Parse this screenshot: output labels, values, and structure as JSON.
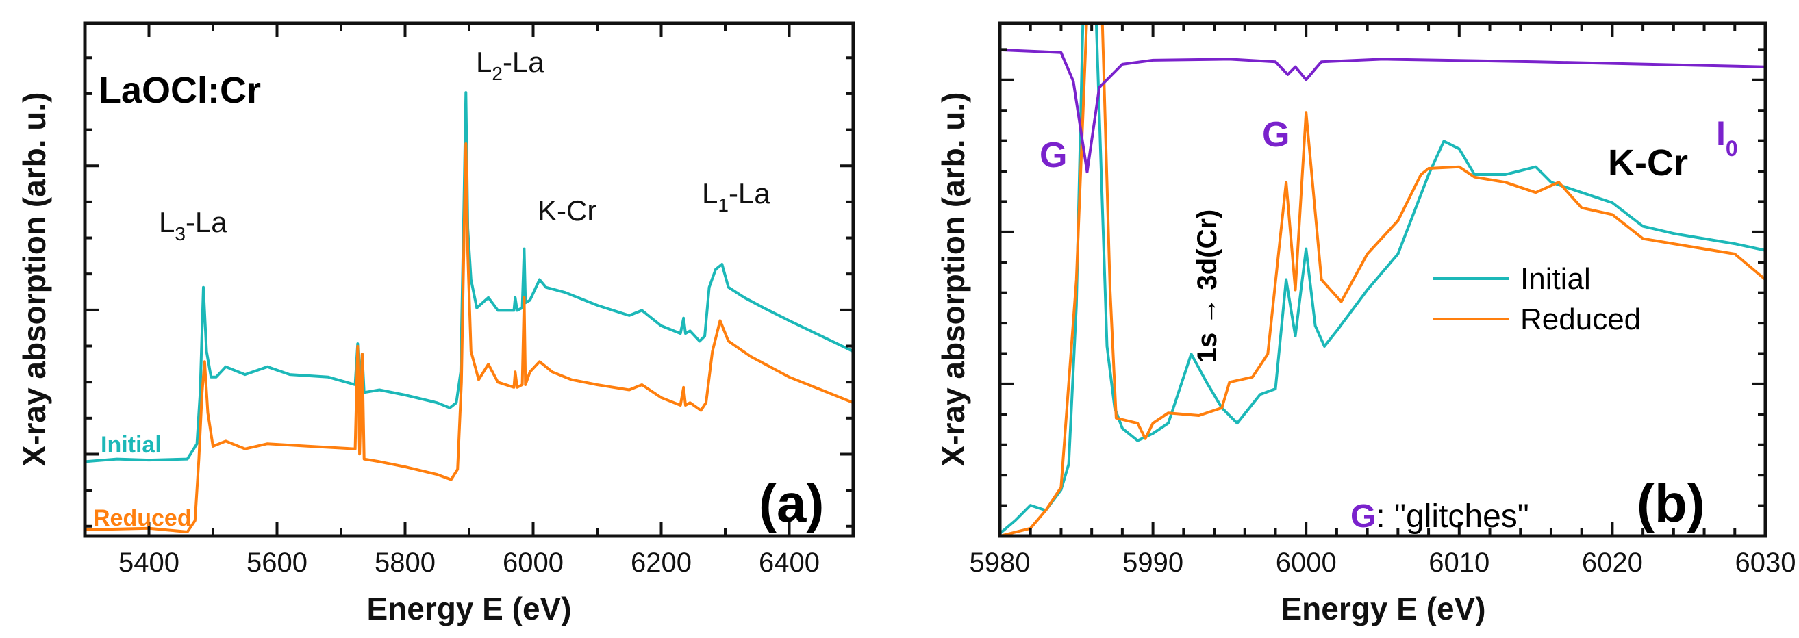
{
  "colors": {
    "initial": "#1cb8b8",
    "reduced": "#ff7f0e",
    "i0": "#7a22cc",
    "axis": "#111111"
  },
  "chart_data": [
    {
      "type": "line",
      "panel_label": "(a)",
      "title": "LaOCl:Cr",
      "xlabel": "Energy E (eV)",
      "ylabel": "X-ray  absorption (arb. u.)",
      "xlim": [
        5300,
        6500
      ],
      "ylim": [
        0,
        10
      ],
      "xticks": [
        5400,
        5600,
        5800,
        6000,
        6200,
        6400
      ],
      "xtick_labels": [
        "5400",
        "5600",
        "5800",
        "6000",
        "6200",
        "6400"
      ],
      "annotations": {
        "l3": {
          "main": "L",
          "sub": "3",
          "rest": "-La"
        },
        "l2": {
          "main": "L",
          "sub": "2",
          "rest": "-La"
        },
        "kcr": "K-Cr",
        "l1": {
          "main": "L",
          "sub": "1",
          "rest": "-La"
        }
      },
      "series": [
        {
          "name": "Initial",
          "color_key": "initial",
          "points": [
            [
              5300,
              1.45
            ],
            [
              5350,
              1.5
            ],
            [
              5400,
              1.48
            ],
            [
              5460,
              1.5
            ],
            [
              5475,
              1.8
            ],
            [
              5480,
              2.8
            ],
            [
              5485,
              4.85
            ],
            [
              5490,
              3.6
            ],
            [
              5497,
              3.1
            ],
            [
              5505,
              3.1
            ],
            [
              5520,
              3.3
            ],
            [
              5550,
              3.15
            ],
            [
              5585,
              3.3
            ],
            [
              5620,
              3.15
            ],
            [
              5680,
              3.1
            ],
            [
              5722,
              2.95
            ],
            [
              5726,
              3.75
            ],
            [
              5729,
              2.95
            ],
            [
              5733,
              3.55
            ],
            [
              5736,
              2.8
            ],
            [
              5760,
              2.85
            ],
            [
              5800,
              2.75
            ],
            [
              5850,
              2.6
            ],
            [
              5870,
              2.5
            ],
            [
              5880,
              2.6
            ],
            [
              5887,
              3.2
            ],
            [
              5892,
              6.5
            ],
            [
              5895,
              8.65
            ],
            [
              5898,
              6.0
            ],
            [
              5903,
              5.0
            ],
            [
              5912,
              4.45
            ],
            [
              5930,
              4.65
            ],
            [
              5945,
              4.4
            ],
            [
              5970,
              4.4
            ],
            [
              5972,
              4.65
            ],
            [
              5975,
              4.4
            ],
            [
              5983,
              4.45
            ],
            [
              5986,
              5.6
            ],
            [
              5988,
              4.55
            ],
            [
              5995,
              4.6
            ],
            [
              6010,
              5.0
            ],
            [
              6020,
              4.85
            ],
            [
              6050,
              4.75
            ],
            [
              6100,
              4.5
            ],
            [
              6150,
              4.3
            ],
            [
              6170,
              4.4
            ],
            [
              6200,
              4.1
            ],
            [
              6230,
              3.95
            ],
            [
              6235,
              4.25
            ],
            [
              6238,
              3.95
            ],
            [
              6245,
              4.0
            ],
            [
              6260,
              3.8
            ],
            [
              6268,
              3.9
            ],
            [
              6275,
              4.85
            ],
            [
              6285,
              5.2
            ],
            [
              6295,
              5.3
            ],
            [
              6305,
              4.85
            ],
            [
              6330,
              4.65
            ],
            [
              6360,
              4.45
            ],
            [
              6400,
              4.2
            ],
            [
              6450,
              3.9
            ],
            [
              6500,
              3.6
            ]
          ]
        },
        {
          "name": "Reduced",
          "color_key": "reduced",
          "points": [
            [
              5300,
              0.12
            ],
            [
              5400,
              0.15
            ],
            [
              5460,
              0.08
            ],
            [
              5472,
              0.3
            ],
            [
              5478,
              1.5
            ],
            [
              5483,
              2.8
            ],
            [
              5487,
              3.4
            ],
            [
              5492,
              2.4
            ],
            [
              5500,
              1.75
            ],
            [
              5520,
              1.85
            ],
            [
              5550,
              1.7
            ],
            [
              5585,
              1.8
            ],
            [
              5650,
              1.75
            ],
            [
              5722,
              1.7
            ],
            [
              5726,
              3.7
            ],
            [
              5729,
              1.6
            ],
            [
              5733,
              3.55
            ],
            [
              5736,
              1.5
            ],
            [
              5760,
              1.45
            ],
            [
              5800,
              1.35
            ],
            [
              5850,
              1.2
            ],
            [
              5872,
              1.1
            ],
            [
              5882,
              1.3
            ],
            [
              5888,
              3.0
            ],
            [
              5893,
              6.5
            ],
            [
              5895,
              7.65
            ],
            [
              5898,
              5.5
            ],
            [
              5903,
              3.6
            ],
            [
              5915,
              3.05
            ],
            [
              5930,
              3.35
            ],
            [
              5945,
              3.0
            ],
            [
              5970,
              2.9
            ],
            [
              5972,
              3.2
            ],
            [
              5975,
              2.9
            ],
            [
              5983,
              2.95
            ],
            [
              5986,
              4.65
            ],
            [
              5988,
              2.95
            ],
            [
              5995,
              3.2
            ],
            [
              6010,
              3.4
            ],
            [
              6030,
              3.2
            ],
            [
              6060,
              3.05
            ],
            [
              6100,
              2.95
            ],
            [
              6150,
              2.85
            ],
            [
              6170,
              2.95
            ],
            [
              6200,
              2.7
            ],
            [
              6230,
              2.55
            ],
            [
              6235,
              2.9
            ],
            [
              6238,
              2.55
            ],
            [
              6245,
              2.6
            ],
            [
              6262,
              2.45
            ],
            [
              6270,
              2.6
            ],
            [
              6280,
              3.6
            ],
            [
              6292,
              4.2
            ],
            [
              6305,
              3.8
            ],
            [
              6340,
              3.5
            ],
            [
              6400,
              3.1
            ],
            [
              6450,
              2.85
            ],
            [
              6500,
              2.6
            ]
          ]
        }
      ],
      "inline_labels": {
        "initial": "Initial",
        "reduced": "Reduced"
      }
    },
    {
      "type": "line",
      "panel_label": "(b)",
      "title": "K-Cr",
      "xlabel": "Energy E (eV)",
      "ylabel": "X-ray  absorption (arb. u.)",
      "xlim": [
        5980,
        6030
      ],
      "ylim": [
        0,
        10
      ],
      "xticks": [
        5980,
        5990,
        6000,
        6010,
        6020,
        6030
      ],
      "xtick_labels": [
        "5980",
        "5990",
        "6000",
        "6010",
        "6020",
        "6030"
      ],
      "annotations": {
        "glitch_marker": "G",
        "transition": "1s → 3d(Cr)",
        "i0": {
          "main": "I",
          "sub": "0"
        },
        "glitch_note_marker": "G",
        "glitch_note_text": ": \"glitches\""
      },
      "legend": {
        "position": "right",
        "entries": [
          "Initial",
          "Reduced"
        ]
      },
      "series": [
        {
          "name": "Initial",
          "color_key": "initial",
          "points": [
            [
              5980,
              0.05
            ],
            [
              5981,
              0.3
            ],
            [
              5982,
              0.6
            ],
            [
              5983,
              0.5
            ],
            [
              5984,
              0.9
            ],
            [
              5984.5,
              1.4
            ],
            [
              5985,
              4.5
            ],
            [
              5985.5,
              11
            ],
            [
              5986,
              11
            ],
            [
              5986.3,
              10
            ],
            [
              5987,
              3.7
            ],
            [
              5987.5,
              2.5
            ],
            [
              5988,
              2.1
            ],
            [
              5989,
              1.86
            ],
            [
              5990,
              2.0
            ],
            [
              5991,
              2.2
            ],
            [
              5992.5,
              3.55
            ],
            [
              5993.5,
              3.0
            ],
            [
              5994.5,
              2.5
            ],
            [
              5995.5,
              2.2
            ],
            [
              5997,
              2.76
            ],
            [
              5998,
              2.87
            ],
            [
              5998.7,
              5.0
            ],
            [
              5999.3,
              3.9
            ],
            [
              6000,
              5.6
            ],
            [
              6000.6,
              4.1
            ],
            [
              6001.2,
              3.7
            ],
            [
              6002,
              4.0
            ],
            [
              6004,
              4.8
            ],
            [
              6006,
              5.5
            ],
            [
              6008,
              7.05
            ],
            [
              6009,
              7.7
            ],
            [
              6010,
              7.55
            ],
            [
              6011,
              7.05
            ],
            [
              6013,
              7.05
            ],
            [
              6015,
              7.2
            ],
            [
              6016,
              6.9
            ],
            [
              6018,
              6.7
            ],
            [
              6020,
              6.5
            ],
            [
              6022,
              6.04
            ],
            [
              6024,
              5.9
            ],
            [
              6026,
              5.8
            ],
            [
              6028,
              5.7
            ],
            [
              6030,
              5.57
            ]
          ]
        },
        {
          "name": "Reduced",
          "color_key": "reduced",
          "points": [
            [
              5980,
              0.0
            ],
            [
              5982,
              0.15
            ],
            [
              5983,
              0.5
            ],
            [
              5984,
              0.95
            ],
            [
              5985,
              5.0
            ],
            [
              5985.8,
              11
            ],
            [
              5986.6,
              11
            ],
            [
              5987.2,
              4.8
            ],
            [
              5987.6,
              2.3
            ],
            [
              5989,
              2.2
            ],
            [
              5989.5,
              1.9
            ],
            [
              5990,
              2.2
            ],
            [
              5991,
              2.4
            ],
            [
              5993,
              2.35
            ],
            [
              5994.5,
              2.5
            ],
            [
              5995,
              3.0
            ],
            [
              5996.5,
              3.1
            ],
            [
              5997.5,
              3.55
            ],
            [
              5998.7,
              6.9
            ],
            [
              5999.3,
              4.8
            ],
            [
              6000,
              8.26
            ],
            [
              6001,
              5.0
            ],
            [
              6002.3,
              4.57
            ],
            [
              6004,
              5.5
            ],
            [
              6006,
              6.15
            ],
            [
              6007.5,
              7.05
            ],
            [
              6008,
              7.17
            ],
            [
              6010,
              7.2
            ],
            [
              6011,
              7.0
            ],
            [
              6013,
              6.9
            ],
            [
              6015,
              6.7
            ],
            [
              6016.5,
              6.9
            ],
            [
              6018,
              6.4
            ],
            [
              6020,
              6.27
            ],
            [
              6022,
              5.8
            ],
            [
              6024,
              5.7
            ],
            [
              6026,
              5.6
            ],
            [
              6028,
              5.5
            ],
            [
              6030,
              5.0
            ]
          ]
        },
        {
          "name": "I0",
          "color_key": "i0",
          "points": [
            [
              5980,
              9.48
            ],
            [
              5984,
              9.43
            ],
            [
              5984.8,
              8.87
            ],
            [
              5985.7,
              7.1
            ],
            [
              5986.5,
              8.75
            ],
            [
              5988,
              9.2
            ],
            [
              5990,
              9.28
            ],
            [
              5995,
              9.3
            ],
            [
              5998,
              9.25
            ],
            [
              5998.8,
              9.0
            ],
            [
              5999.3,
              9.15
            ],
            [
              6000,
              8.9
            ],
            [
              6001,
              9.25
            ],
            [
              6005,
              9.3
            ],
            [
              6015,
              9.25
            ],
            [
              6030,
              9.15
            ]
          ]
        }
      ]
    }
  ]
}
